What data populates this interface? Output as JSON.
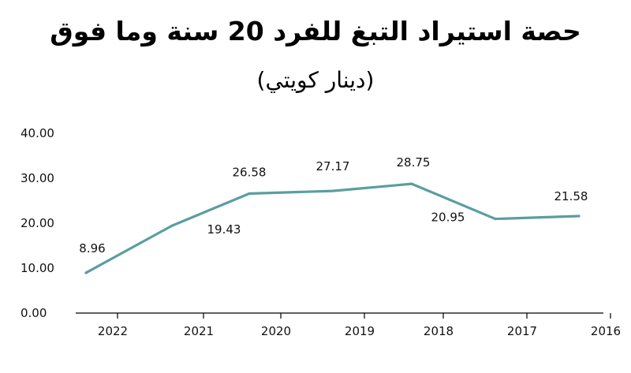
{
  "chart_data": {
    "type": "line",
    "title": "حصة استيراد التبغ للفرد 20 سنة وما فوق",
    "subtitle": "(دينار كويتي)",
    "categories": [
      "2022",
      "2021",
      "2020",
      "2019",
      "2018",
      "2017",
      "2016"
    ],
    "series": [
      {
        "values": [
          8.96,
          19.43,
          26.58,
          27.17,
          28.75,
          20.95,
          21.58
        ],
        "labels": [
          "8.96",
          "19.43",
          "26.58",
          "27.17",
          "28.75",
          "20.95",
          "21.58"
        ]
      }
    ],
    "yticks": [
      "0.00",
      "10.00",
      "20.00",
      "30.00",
      "40.00"
    ],
    "ylim": [
      0,
      40
    ],
    "grid": false,
    "line_color": "#5b9ea1",
    "axis_color": "#000000"
  }
}
